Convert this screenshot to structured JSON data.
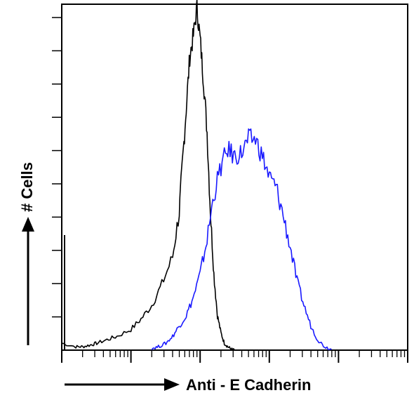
{
  "chart_data": {
    "type": "histogram",
    "xlabel": "Anti - E Cadherin",
    "ylabel": "# Cells",
    "x_scale": "log",
    "x_range": [
      1,
      100000
    ],
    "y_range": [
      0,
      100
    ],
    "grid": false,
    "series": [
      {
        "color": "#000000",
        "x": [
          1.0,
          1.6,
          2.0,
          2.6,
          3.2,
          4.5,
          6.3,
          10,
          14,
          20,
          28,
          40,
          50,
          56,
          63,
          71,
          80,
          90,
          100,
          112,
          126,
          141,
          158,
          178,
          200,
          224,
          251,
          282,
          316
        ],
        "y": [
          2,
          1,
          1,
          1.5,
          2,
          3,
          4,
          6,
          9,
          13,
          19,
          27,
          40,
          55,
          70,
          85,
          91,
          99,
          90,
          78,
          63,
          40,
          22,
          10,
          5,
          2,
          1,
          0.3,
          0
        ]
      },
      {
        "color": "#1a1aff",
        "x": [
          20,
          25,
          32,
          40,
          50,
          63,
          79,
          100,
          126,
          158,
          200,
          251,
          316,
          398,
          501,
          631,
          794,
          1000,
          1259,
          1585,
          1995,
          2512,
          3162,
          3981,
          5012,
          6310,
          7943
        ],
        "y": [
          0.5,
          1,
          2,
          4,
          7,
          10,
          15,
          22,
          32,
          45,
          53,
          58,
          56,
          57,
          61,
          61,
          56,
          50,
          47,
          39,
          30,
          20,
          13,
          7,
          3,
          1,
          0.2
        ]
      }
    ]
  }
}
